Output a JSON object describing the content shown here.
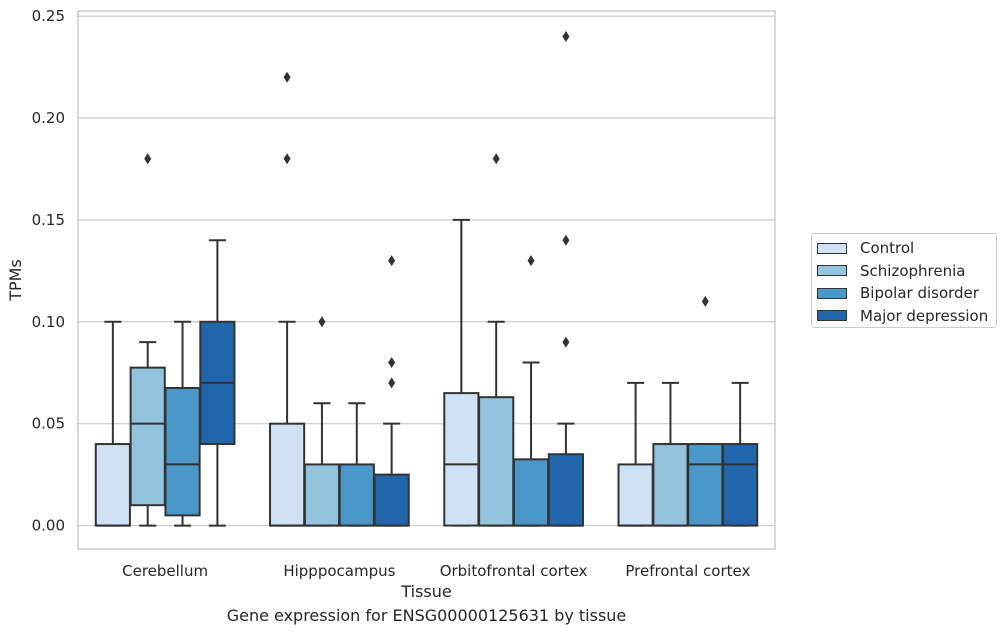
{
  "chart_data": {
    "type": "box",
    "xlabel": "Tissue",
    "ylabel": "TPMs",
    "ylim": [
      -0.0115,
      0.2525
    ],
    "yticks": [
      0.0,
      0.05,
      0.1,
      0.15,
      0.2,
      0.25
    ],
    "ytick_labels": [
      "0.00",
      "0.05",
      "0.10",
      "0.15",
      "0.20",
      "0.25"
    ],
    "grid": true,
    "legend_position": "right",
    "categories": [
      "Cerebellum",
      "Hipppocampus",
      "Orbitofrontal cortex",
      "Prefrontal cortex"
    ],
    "series": [
      {
        "name": "Control",
        "color": "#cfe1f2",
        "boxes": [
          {
            "whisker_low": 0.0,
            "q1": 0.0,
            "median": 0.0,
            "q3": 0.04,
            "whisker_high": 0.1,
            "outliers": []
          },
          {
            "whisker_low": 0.0,
            "q1": 0.0,
            "median": 0.0,
            "q3": 0.05,
            "whisker_high": 0.1,
            "outliers": [
              0.18,
              0.22
            ]
          },
          {
            "whisker_low": 0.0,
            "q1": 0.0,
            "median": 0.03,
            "q3": 0.065,
            "whisker_high": 0.15,
            "outliers": []
          },
          {
            "whisker_low": 0.0,
            "q1": 0.0,
            "median": 0.0,
            "q3": 0.03,
            "whisker_high": 0.07,
            "outliers": []
          }
        ]
      },
      {
        "name": "Schizophrenia",
        "color": "#93c4de",
        "boxes": [
          {
            "whisker_low": 0.0,
            "q1": 0.01,
            "median": 0.05,
            "q3": 0.0775,
            "whisker_high": 0.09,
            "outliers": [
              0.18
            ]
          },
          {
            "whisker_low": 0.0,
            "q1": 0.0,
            "median": 0.0,
            "q3": 0.03,
            "whisker_high": 0.06,
            "outliers": [
              0.1
            ]
          },
          {
            "whisker_low": 0.0,
            "q1": 0.0,
            "median": 0.0,
            "q3": 0.063,
            "whisker_high": 0.1,
            "outliers": [
              0.18
            ]
          },
          {
            "whisker_low": 0.0,
            "q1": 0.0,
            "median": 0.0,
            "q3": 0.04,
            "whisker_high": 0.07,
            "outliers": []
          }
        ]
      },
      {
        "name": "Bipolar disorder",
        "color": "#4a98c9",
        "boxes": [
          {
            "whisker_low": 0.0,
            "q1": 0.005,
            "median": 0.03,
            "q3": 0.0675,
            "whisker_high": 0.1,
            "outliers": []
          },
          {
            "whisker_low": 0.0,
            "q1": 0.0,
            "median": 0.0,
            "q3": 0.03,
            "whisker_high": 0.06,
            "outliers": []
          },
          {
            "whisker_low": 0.0,
            "q1": 0.0,
            "median": 0.0,
            "q3": 0.0325,
            "whisker_high": 0.08,
            "outliers": [
              0.13
            ]
          },
          {
            "whisker_low": 0.0,
            "q1": 0.0,
            "median": 0.03,
            "q3": 0.04,
            "whisker_high": 0.04,
            "outliers": [
              0.11
            ]
          }
        ]
      },
      {
        "name": "Major depression",
        "color": "#2166ac",
        "boxes": [
          {
            "whisker_low": 0.0,
            "q1": 0.04,
            "median": 0.07,
            "q3": 0.1,
            "whisker_high": 0.14,
            "outliers": []
          },
          {
            "whisker_low": 0.0,
            "q1": 0.0,
            "median": 0.0,
            "q3": 0.025,
            "whisker_high": 0.05,
            "outliers": [
              0.07,
              0.08,
              0.13
            ]
          },
          {
            "whisker_low": 0.0,
            "q1": 0.0,
            "median": 0.0,
            "q3": 0.035,
            "whisker_high": 0.05,
            "outliers": [
              0.09,
              0.14,
              0.24
            ]
          },
          {
            "whisker_low": 0.0,
            "q1": 0.0,
            "median": 0.03,
            "q3": 0.04,
            "whisker_high": 0.07,
            "outliers": []
          }
        ]
      }
    ]
  },
  "caption": "Gene expression for ENSG00000125631 by tissue"
}
